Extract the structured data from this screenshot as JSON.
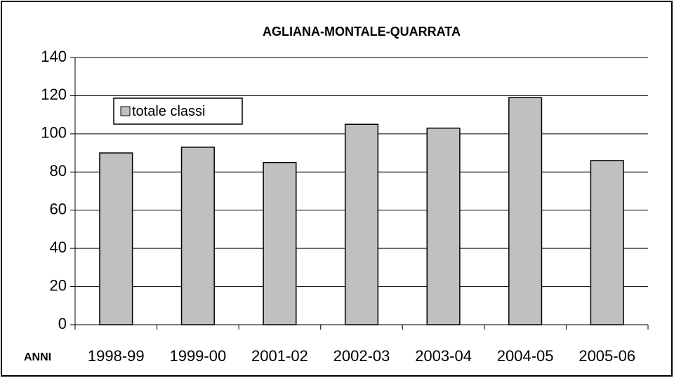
{
  "chart_data": {
    "type": "bar",
    "title": "AGLIANA-MONTALE-QUARRATA",
    "x_label": "ANNI",
    "categories": [
      "1998-99",
      "1999-00",
      "2001-02",
      "2002-03",
      "2003-04",
      "2004-05",
      "2005-06"
    ],
    "series": [
      {
        "name": "totale classi",
        "color": "#c0c0c0",
        "values": [
          90,
          93,
          85,
          105,
          103,
          119,
          86
        ]
      }
    ],
    "ylim": [
      0,
      140
    ],
    "yticks": [
      0,
      20,
      40,
      60,
      80,
      100,
      120,
      140
    ],
    "grid": true,
    "legend": "upper left"
  }
}
